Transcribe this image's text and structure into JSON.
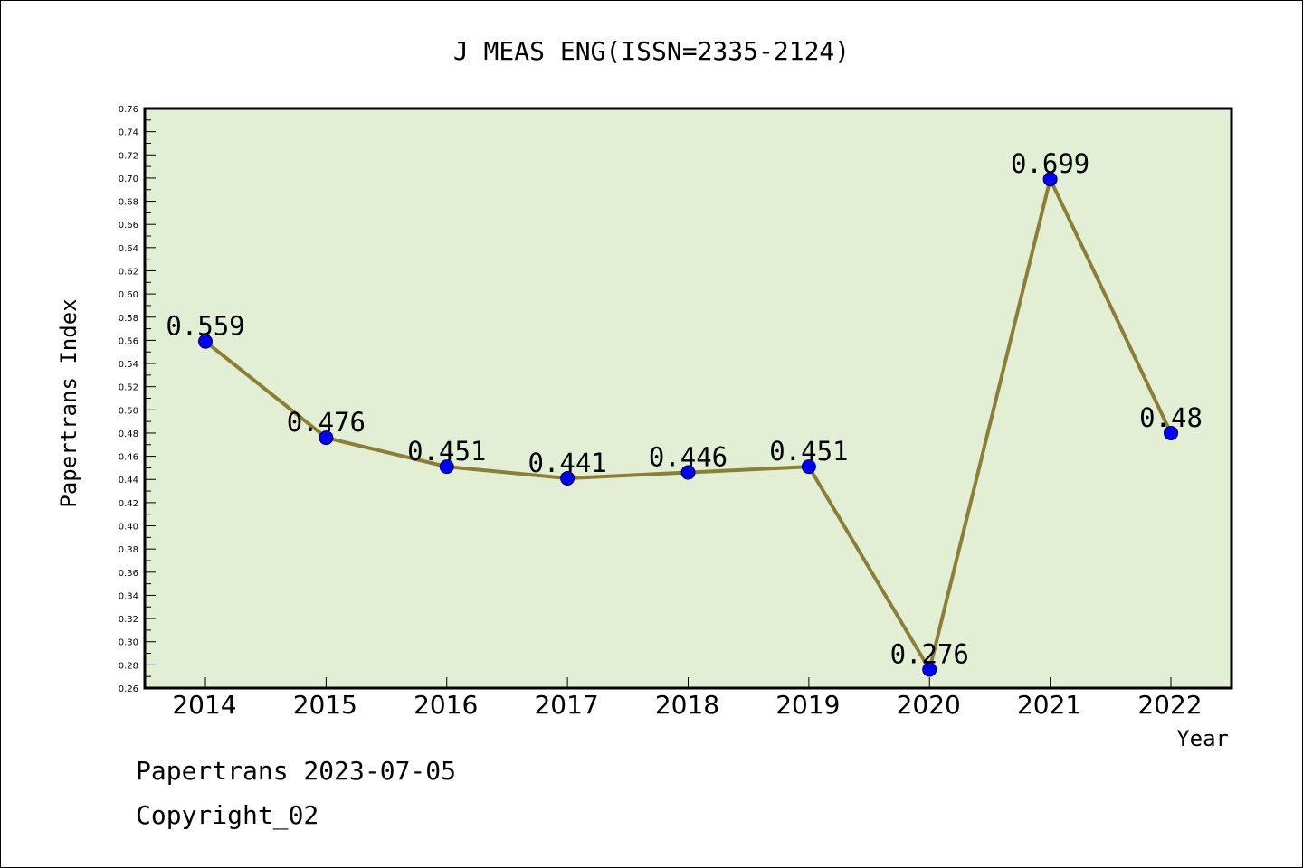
{
  "chart_data": {
    "type": "line",
    "title": "J MEAS ENG(ISSN=2335-2124)",
    "xlabel": "Year",
    "ylabel": "Papertrans Index",
    "categories": [
      "2014",
      "2015",
      "2016",
      "2017",
      "2018",
      "2019",
      "2020",
      "2021",
      "2022"
    ],
    "series": [
      {
        "values": [
          0.559,
          0.476,
          0.451,
          0.441,
          0.446,
          0.451,
          0.276,
          0.699,
          0.48
        ],
        "labels": [
          "0.559",
          "0.476",
          "0.451",
          "0.441",
          "0.446",
          "0.451",
          "0.276",
          "0.699",
          "0.48"
        ]
      }
    ],
    "ylim": [
      0.26,
      0.76
    ],
    "ytick_labels": [
      "0.26",
      "0.28",
      "0.30",
      "0.32",
      "0.34",
      "0.36",
      "0.38",
      "0.40",
      "0.42",
      "0.44",
      "0.46",
      "0.48",
      "0.50",
      "0.52",
      "0.54",
      "0.56",
      "0.58",
      "0.60",
      "0.62",
      "0.64",
      "0.66",
      "0.68",
      "0.70",
      "0.72",
      "0.74",
      "0.76"
    ],
    "grid": false,
    "colors": {
      "plot_background": "#e2efd5",
      "line": "#8b7e35",
      "marker": "#0000ff"
    }
  },
  "footer": {
    "date_line": "Papertrans 2023-07-05",
    "copyright_line": "Copyright_02"
  }
}
